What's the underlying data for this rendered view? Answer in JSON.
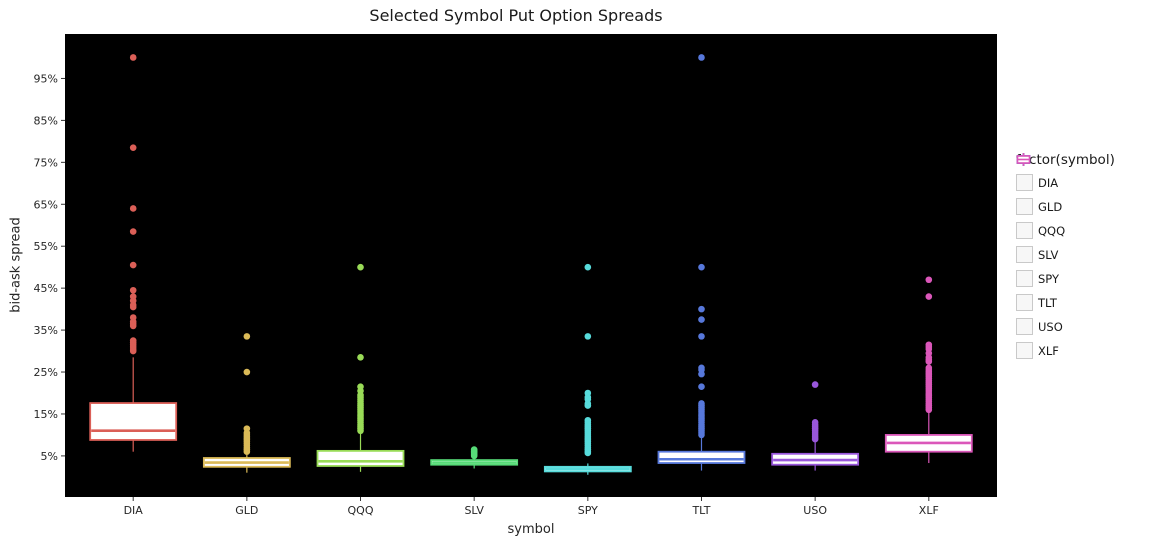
{
  "title": "Selected Symbol Put Option Spreads",
  "x_axis": {
    "label": "symbol",
    "categories": [
      "DIA",
      "GLD",
      "QQQ",
      "SLV",
      "SPY",
      "TLT",
      "USO",
      "XLF"
    ]
  },
  "y_axis": {
    "label": "bid-ask spread",
    "tick_labels": [
      "95%",
      "85%",
      "75%",
      "65%",
      "55%",
      "45%",
      "35%",
      "25%",
      "15%",
      "5%"
    ],
    "tick_values": [
      95,
      85,
      75,
      65,
      55,
      45,
      35,
      25,
      15,
      5
    ]
  },
  "legend": {
    "title": "factor(symbol)",
    "entries": [
      {
        "label": "DIA",
        "color": "#db5f57"
      },
      {
        "label": "GLD",
        "color": "#dbba57"
      },
      {
        "label": "QQQ",
        "color": "#99db57"
      },
      {
        "label": "SLV",
        "color": "#57db78"
      },
      {
        "label": "SPY",
        "color": "#57dbdb"
      },
      {
        "label": "TLT",
        "color": "#5778db"
      },
      {
        "label": "USO",
        "color": "#9957db"
      },
      {
        "label": "XLF",
        "color": "#db57ba"
      }
    ]
  },
  "colors": {
    "panel_background": "#000000",
    "figure_background": "#ffffff",
    "box_fill": "#ffffff",
    "axis_text": "#262626"
  },
  "chart_data": {
    "type": "boxplot",
    "title": "Selected Symbol Put Option Spreads",
    "xlabel": "symbol",
    "ylabel": "bid-ask spread",
    "categories": [
      "DIA",
      "GLD",
      "QQQ",
      "SLV",
      "SPY",
      "TLT",
      "USO",
      "XLF"
    ],
    "ylim": [
      -4.8,
      105.6
    ],
    "y_tick_values": [
      5,
      15,
      25,
      35,
      45,
      55,
      65,
      75,
      85,
      95
    ],
    "grid": false,
    "legend_position": "right",
    "panel_background": "#000000",
    "units": "percent",
    "series": [
      {
        "name": "DIA",
        "color": "#db5f57",
        "whisker_low": 6.0,
        "q1": 8.8,
        "median": 11.0,
        "q3": 17.6,
        "whisker_high": 28.5,
        "outliers": [
          100,
          78.5,
          64,
          58.5,
          50.5,
          44.5,
          43,
          42,
          41,
          40.5,
          38,
          37,
          36.5,
          36,
          32.5,
          32,
          31.5,
          31,
          30.5,
          30
        ]
      },
      {
        "name": "GLD",
        "color": "#dbba57",
        "whisker_low": 1.0,
        "q1": 2.4,
        "median": 3.4,
        "q3": 4.5,
        "whisker_high": 5.2,
        "outliers": [
          33.5,
          25,
          11.5,
          10.5,
          10,
          9.5,
          9,
          8.5,
          8,
          7.5,
          7,
          6.5,
          6
        ]
      },
      {
        "name": "QQQ",
        "color": "#99db57",
        "whisker_low": 1.2,
        "q1": 2.6,
        "median": 3.7,
        "q3": 6.2,
        "whisker_high": 10.5,
        "outliers": [
          50,
          28.5,
          21.5,
          20.5,
          19.5,
          19,
          18.5,
          18,
          17.5,
          17,
          16.5,
          16,
          15.5,
          15,
          14.5,
          14,
          13.5,
          13,
          12.5,
          12,
          11.5,
          11
        ]
      },
      {
        "name": "SLV",
        "color": "#57db78",
        "whisker_low": 2.0,
        "q1": 2.9,
        "median": 3.4,
        "q3": 4.0,
        "whisker_high": 4.6,
        "outliers": [
          6.5,
          6.2,
          6,
          5.8,
          5.5,
          5.2,
          5
        ]
      },
      {
        "name": "SPY",
        "color": "#57dbdb",
        "whisker_low": 0.5,
        "q1": 1.3,
        "median": 1.9,
        "q3": 2.4,
        "whisker_high": 3.2,
        "outliers": [
          50,
          33.5,
          20,
          19,
          18.5,
          17.5,
          17,
          13.5,
          13,
          12.5,
          12,
          11.5,
          11,
          10.5,
          10,
          9.5,
          9,
          8.5,
          8,
          7.5,
          7,
          6.5,
          6,
          5.7
        ]
      },
      {
        "name": "TLT",
        "color": "#5778db",
        "whisker_low": 1.5,
        "q1": 3.3,
        "median": 4.2,
        "q3": 6.0,
        "whisker_high": 9.8,
        "outliers": [
          100,
          50,
          40,
          37.5,
          33.5,
          26,
          25.5,
          24.5,
          21.5,
          17.5,
          17,
          16.5,
          16,
          15.5,
          15,
          14.5,
          14,
          13.5,
          13,
          12.5,
          12,
          11.5,
          11,
          10.5,
          10
        ]
      },
      {
        "name": "USO",
        "color": "#9957db",
        "whisker_low": 1.5,
        "q1": 2.9,
        "median": 4.0,
        "q3": 5.5,
        "whisker_high": 8.8,
        "outliers": [
          22,
          13,
          12.5,
          12,
          11.5,
          11,
          10.5,
          10,
          9.5,
          9
        ]
      },
      {
        "name": "XLF",
        "color": "#db57ba",
        "whisker_low": 3.3,
        "q1": 6.0,
        "median": 8.1,
        "q3": 10.0,
        "whisker_high": 15.5,
        "outliers": [
          47,
          43,
          31.5,
          31,
          30.5,
          29.5,
          28.5,
          28,
          27.5,
          26,
          25.5,
          25,
          24.5,
          24,
          23.5,
          23,
          22.5,
          22,
          21.5,
          21,
          20.5,
          20,
          19.5,
          19,
          18.5,
          18,
          17.5,
          17,
          16.5,
          16
        ]
      }
    ]
  }
}
